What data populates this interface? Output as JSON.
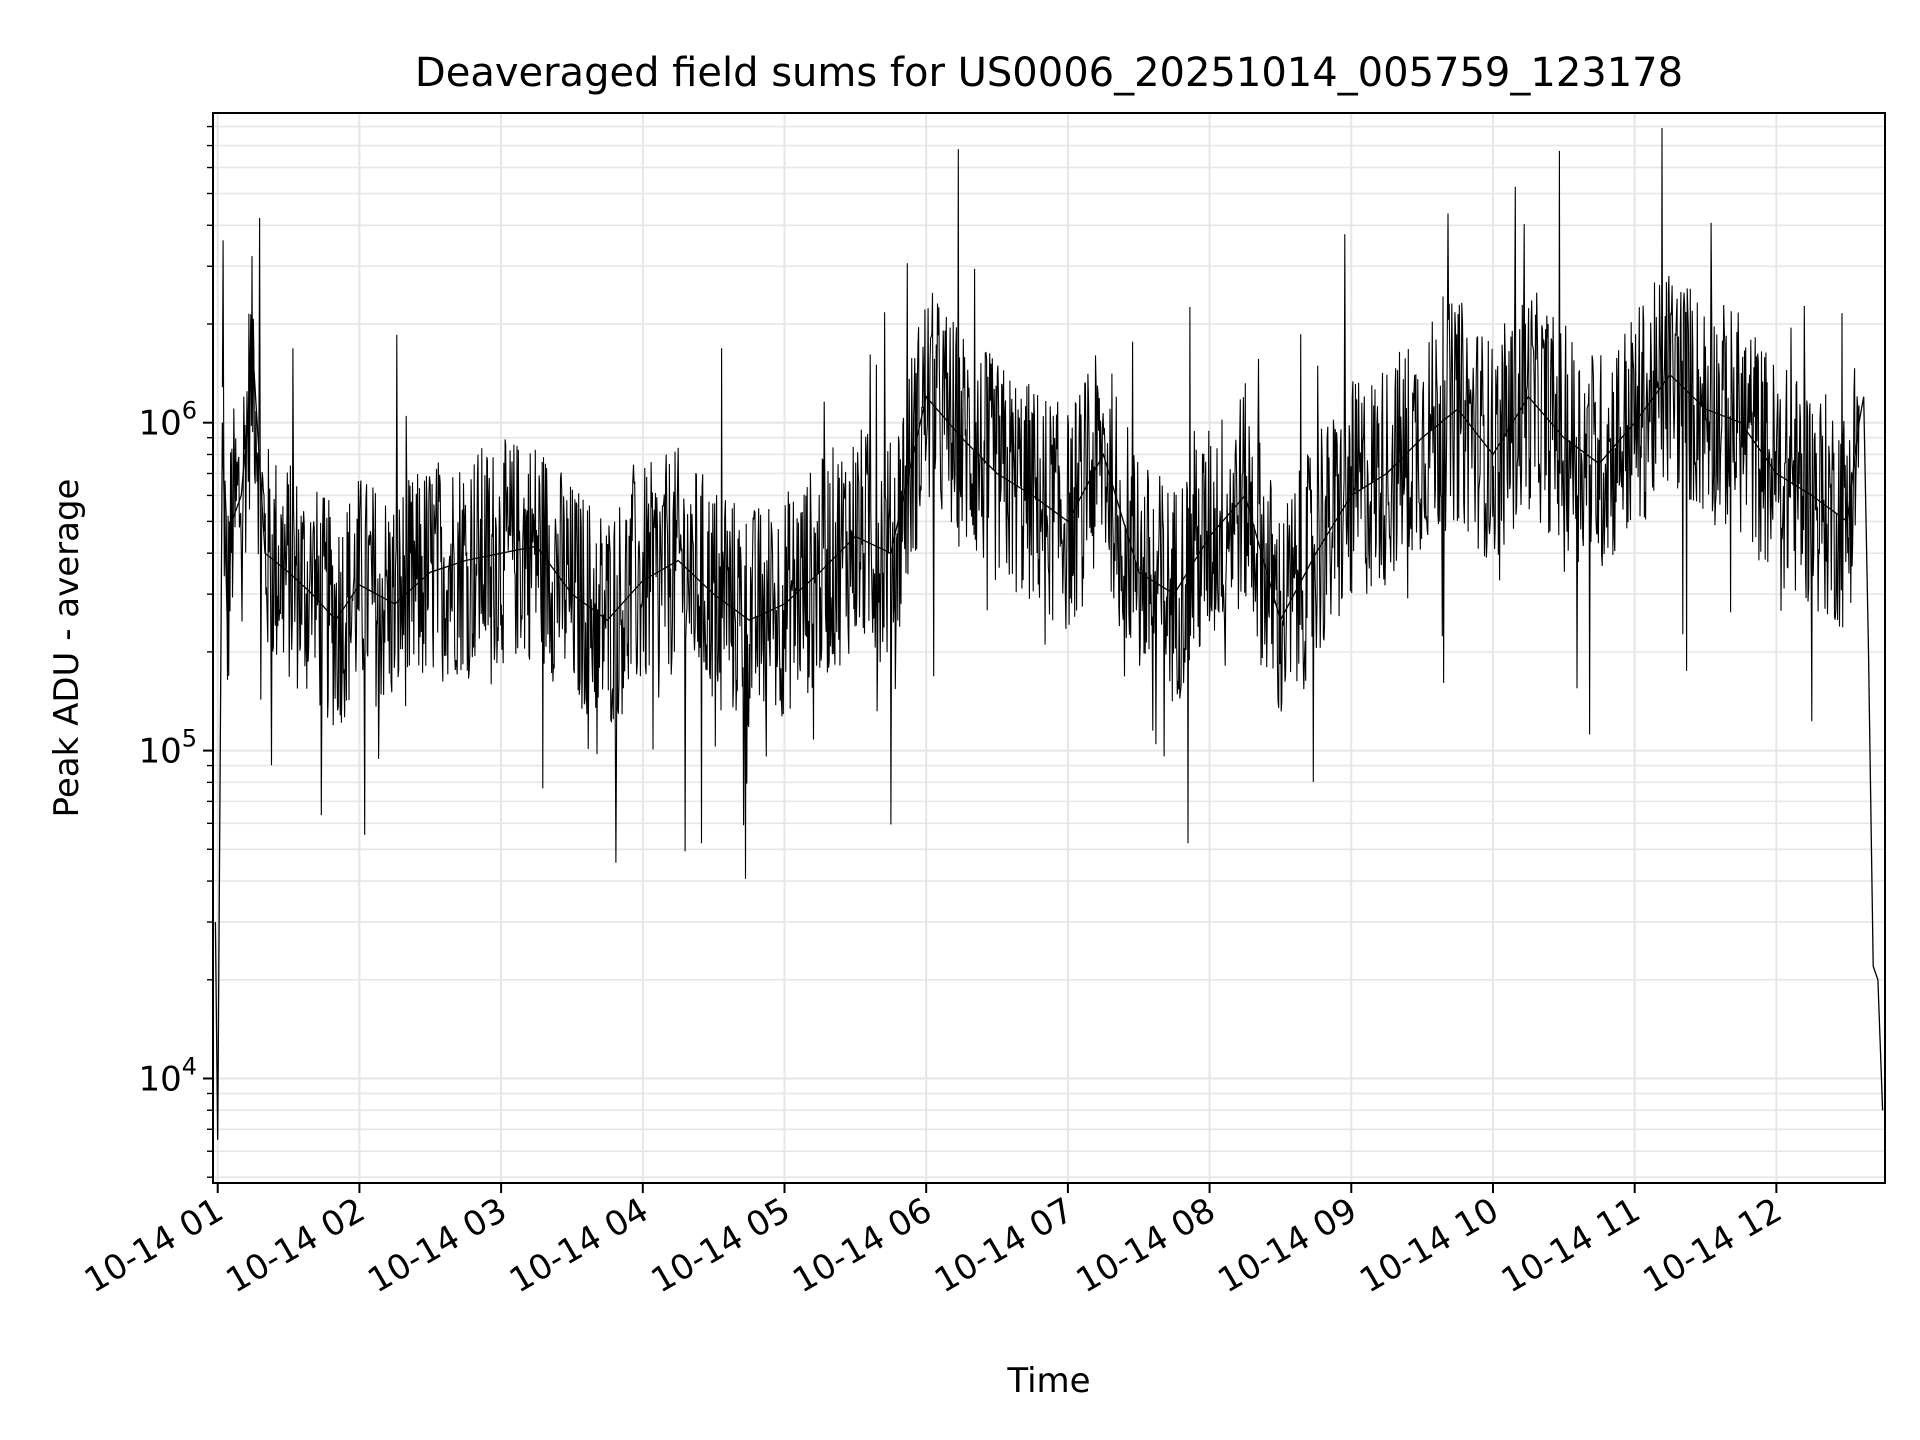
{
  "chart_data": {
    "type": "line",
    "title": "Deaveraged field sums for US0006_20251014_005759_123178",
    "xlabel": "Time",
    "ylabel": "Peak ADU - average",
    "yscale": "log",
    "ylim": [
      4800,
      8800000
    ],
    "xlim": [
      "2025-10-14 00:58",
      "2025-10-14 12:46"
    ],
    "grid": true,
    "line_color": "#000000",
    "grid_color": "#e6e6e6",
    "x_ticks": [
      {
        "at": "2025-10-14 01:00",
        "label": "10-14 01"
      },
      {
        "at": "2025-10-14 02:00",
        "label": "10-14 02"
      },
      {
        "at": "2025-10-14 03:00",
        "label": "10-14 03"
      },
      {
        "at": "2025-10-14 04:00",
        "label": "10-14 04"
      },
      {
        "at": "2025-10-14 05:00",
        "label": "10-14 05"
      },
      {
        "at": "2025-10-14 06:00",
        "label": "10-14 06"
      },
      {
        "at": "2025-10-14 07:00",
        "label": "10-14 07"
      },
      {
        "at": "2025-10-14 08:00",
        "label": "10-14 08"
      },
      {
        "at": "2025-10-14 09:00",
        "label": "10-14 09"
      },
      {
        "at": "2025-10-14 10:00",
        "label": "10-14 10"
      },
      {
        "at": "2025-10-14 11:00",
        "label": "10-14 11"
      },
      {
        "at": "2025-10-14 12:00",
        "label": "10-14 12"
      }
    ],
    "y_ticks": [
      {
        "value": 10000,
        "base": "10",
        "exp": "4"
      },
      {
        "value": 100000,
        "base": "10",
        "exp": "5"
      },
      {
        "value": 1000000,
        "base": "10",
        "exp": "6"
      }
    ],
    "series": [
      {
        "x": [
          "2025-10-14 00:59",
          "2025-10-14 01:00",
          "2025-10-14 01:02",
          "2025-10-14 01:04",
          "2025-10-14 01:06",
          "2025-10-14 01:10",
          "2025-10-14 01:15",
          "2025-10-14 01:20",
          "2025-10-14 01:30",
          "2025-10-14 01:40",
          "2025-10-14 01:50",
          "2025-10-14 02:00",
          "2025-10-14 02:15",
          "2025-10-14 02:30",
          "2025-10-14 02:45",
          "2025-10-14 03:00",
          "2025-10-14 03:15",
          "2025-10-14 03:30",
          "2025-10-14 03:45",
          "2025-10-14 04:00",
          "2025-10-14 04:15",
          "2025-10-14 04:30",
          "2025-10-14 04:45",
          "2025-10-14 05:00",
          "2025-10-14 05:15",
          "2025-10-14 05:30",
          "2025-10-14 05:45",
          "2025-10-14 06:00",
          "2025-10-14 06:15",
          "2025-10-14 06:30",
          "2025-10-14 06:45",
          "2025-10-14 07:00",
          "2025-10-14 07:15",
          "2025-10-14 07:30",
          "2025-10-14 07:45",
          "2025-10-14 08:00",
          "2025-10-14 08:15",
          "2025-10-14 08:30",
          "2025-10-14 08:45",
          "2025-10-14 09:00",
          "2025-10-14 09:15",
          "2025-10-14 09:30",
          "2025-10-14 09:45",
          "2025-10-14 10:00",
          "2025-10-14 10:15",
          "2025-10-14 10:30",
          "2025-10-14 10:45",
          "2025-10-14 11:00",
          "2025-10-14 11:15",
          "2025-10-14 11:30",
          "2025-10-14 11:45",
          "2025-10-14 12:00",
          "2025-10-14 12:15",
          "2025-10-14 12:30",
          "2025-10-14 12:35",
          "2025-10-14 12:37",
          "2025-10-14 12:39",
          "2025-10-14 12:41",
          "2025-10-14 12:43",
          "2025-10-14 12:45"
        ],
        "y": [
          30000,
          6500,
          1000000,
          250000,
          500000,
          600000,
          1600000,
          400000,
          350000,
          300000,
          250000,
          320000,
          280000,
          350000,
          380000,
          400000,
          420000,
          300000,
          250000,
          330000,
          380000,
          300000,
          250000,
          280000,
          350000,
          450000,
          400000,
          1200000,
          900000,
          700000,
          600000,
          500000,
          800000,
          350000,
          300000,
          450000,
          600000,
          250000,
          400000,
          600000,
          700000,
          900000,
          1100000,
          800000,
          1200000,
          900000,
          750000,
          1000000,
          1400000,
          1100000,
          1000000,
          700000,
          600000,
          500000,
          1000000,
          1200000,
          200000,
          22000,
          20000,
          8000
        ]
      }
    ]
  }
}
